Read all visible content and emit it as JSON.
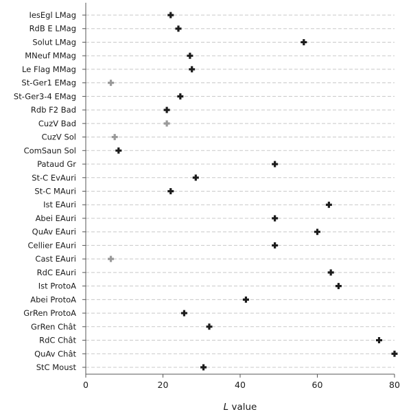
{
  "chart_data": {
    "type": "scatter",
    "xlabel_var": "L",
    "xlabel_rest": " value",
    "xlim": [
      0,
      80
    ],
    "xticks": [
      0,
      20,
      40,
      60,
      80
    ],
    "grid": "horizontal dashed",
    "marker": "plus",
    "colors": {
      "dark": "#1c1c1c",
      "light": "#9a9a9a",
      "grid": "#c8c8c8",
      "axis": "#555555"
    },
    "points": [
      {
        "label": "IesEgl LMag",
        "x": 22,
        "tone": "dark"
      },
      {
        "label": "RdB E LMag",
        "x": 24,
        "tone": "dark"
      },
      {
        "label": "Solut LMag",
        "x": 56.5,
        "tone": "dark"
      },
      {
        "label": "MNeuf MMag",
        "x": 27,
        "tone": "dark"
      },
      {
        "label": "Le Flag MMag",
        "x": 27.5,
        "tone": "dark"
      },
      {
        "label": "St-Ger1 EMag",
        "x": 6.5,
        "tone": "light"
      },
      {
        "label": "St-Ger3-4 EMag",
        "x": 24.5,
        "tone": "dark"
      },
      {
        "label": "Rdb F2 Bad",
        "x": 21,
        "tone": "dark"
      },
      {
        "label": "CuzV Bad",
        "x": 21,
        "tone": "light"
      },
      {
        "label": "CuzV Sol",
        "x": 7.5,
        "tone": "light"
      },
      {
        "label": "ComSaun Sol",
        "x": 8.5,
        "tone": "dark"
      },
      {
        "label": "Pataud Gr",
        "x": 49,
        "tone": "dark"
      },
      {
        "label": "St-C EvAuri",
        "x": 28.5,
        "tone": "dark"
      },
      {
        "label": "St-C MAuri",
        "x": 22,
        "tone": "dark"
      },
      {
        "label": "Ist EAuri",
        "x": 63,
        "tone": "dark"
      },
      {
        "label": "Abei EAuri",
        "x": 49,
        "tone": "dark"
      },
      {
        "label": "QuAv EAuri",
        "x": 60,
        "tone": "dark"
      },
      {
        "label": "Cellier EAuri",
        "x": 49,
        "tone": "dark"
      },
      {
        "label": "Cast EAuri",
        "x": 6.5,
        "tone": "light"
      },
      {
        "label": "RdC EAuri",
        "x": 63.5,
        "tone": "dark"
      },
      {
        "label": "Ist ProtoA",
        "x": 65.5,
        "tone": "dark"
      },
      {
        "label": "Abei ProtoA",
        "x": 41.5,
        "tone": "dark"
      },
      {
        "label": "GrRen ProtoA",
        "x": 25.5,
        "tone": "dark"
      },
      {
        "label": "GrRen Chât",
        "x": 32,
        "tone": "dark"
      },
      {
        "label": "RdC Chât",
        "x": 76,
        "tone": "dark"
      },
      {
        "label": "QuAv Chât",
        "x": 80,
        "tone": "dark"
      },
      {
        "label": "StC Moust",
        "x": 30.5,
        "tone": "dark"
      }
    ]
  }
}
